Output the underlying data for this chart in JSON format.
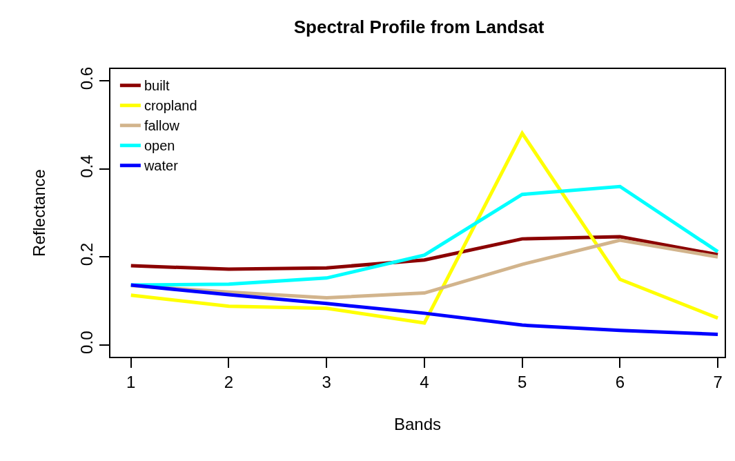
{
  "chart_data": {
    "type": "line",
    "title": "Spectral Profile from Landsat",
    "xlabel": "Bands",
    "ylabel": "Reflectance",
    "x": [
      1,
      2,
      3,
      4,
      5,
      6,
      7
    ],
    "series": [
      {
        "name": "built",
        "color": "#8b0000",
        "values": [
          0.18,
          0.172,
          0.175,
          0.193,
          0.241,
          0.246,
          0.205
        ]
      },
      {
        "name": "cropland",
        "color": "#ffff00",
        "values": [
          0.113,
          0.088,
          0.083,
          0.05,
          0.481,
          0.149,
          0.061
        ]
      },
      {
        "name": "fallow",
        "color": "#d2b48c",
        "values": [
          0.135,
          0.12,
          0.107,
          0.118,
          0.183,
          0.238,
          0.2
        ]
      },
      {
        "name": "open",
        "color": "#00ffff",
        "values": [
          0.136,
          0.138,
          0.152,
          0.204,
          0.342,
          0.36,
          0.212
        ]
      },
      {
        "name": "water",
        "color": "#0000ff",
        "values": [
          0.136,
          0.114,
          0.094,
          0.072,
          0.045,
          0.033,
          0.024
        ]
      }
    ],
    "xlim": [
      0.79,
      7.07
    ],
    "ylim": [
      -0.027,
      0.627
    ],
    "xticks": [
      1,
      2,
      3,
      4,
      5,
      6,
      7
    ],
    "yticks": [
      {
        "value": 0,
        "label": "0.0"
      },
      {
        "value": 0.2,
        "label": "0.2"
      },
      {
        "value": 0.4,
        "label": "0.4"
      },
      {
        "value": 0.6,
        "label": "0.6"
      }
    ],
    "grid": false,
    "legend": "top left",
    "marker": "none",
    "line_style": "solid"
  }
}
